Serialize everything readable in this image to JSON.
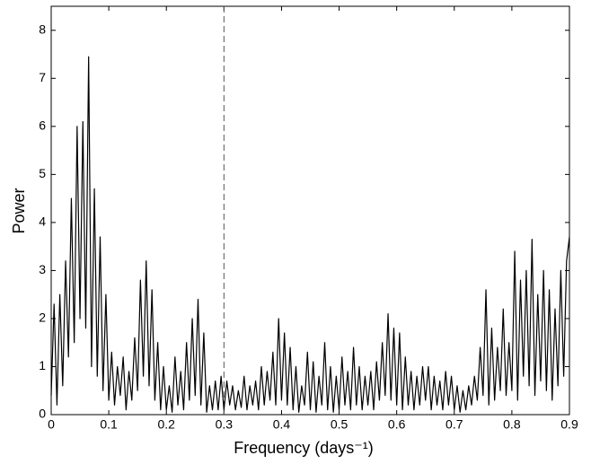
{
  "chart_data": {
    "type": "line",
    "xlabel": "Frequency (days⁻¹)",
    "ylabel": "Power",
    "xlim": [
      0,
      0.9
    ],
    "ylim": [
      0,
      8.5
    ],
    "xticks": [
      0,
      0.1,
      0.2,
      0.3,
      0.4,
      0.5,
      0.6,
      0.7,
      0.8,
      0.9
    ],
    "yticks": [
      0,
      1,
      2,
      3,
      4,
      5,
      6,
      7,
      8
    ],
    "vline": 0.3,
    "color": "#000000",
    "x": [
      0,
      0.005,
      0.01,
      0.015,
      0.02,
      0.025,
      0.03,
      0.035,
      0.04,
      0.045,
      0.05,
      0.055,
      0.06,
      0.065,
      0.07,
      0.075,
      0.08,
      0.085,
      0.09,
      0.095,
      0.1,
      0.105,
      0.11,
      0.115,
      0.12,
      0.125,
      0.13,
      0.135,
      0.14,
      0.145,
      0.15,
      0.155,
      0.16,
      0.165,
      0.17,
      0.175,
      0.18,
      0.185,
      0.19,
      0.195,
      0.2,
      0.205,
      0.21,
      0.215,
      0.22,
      0.225,
      0.23,
      0.235,
      0.24,
      0.245,
      0.25,
      0.255,
      0.26,
      0.265,
      0.27,
      0.275,
      0.28,
      0.285,
      0.29,
      0.295,
      0.3,
      0.305,
      0.31,
      0.315,
      0.32,
      0.325,
      0.33,
      0.335,
      0.34,
      0.345,
      0.35,
      0.355,
      0.36,
      0.365,
      0.37,
      0.375,
      0.38,
      0.385,
      0.39,
      0.395,
      0.4,
      0.405,
      0.41,
      0.415,
      0.42,
      0.425,
      0.43,
      0.435,
      0.44,
      0.445,
      0.45,
      0.455,
      0.46,
      0.465,
      0.47,
      0.475,
      0.48,
      0.485,
      0.49,
      0.495,
      0.5,
      0.505,
      0.51,
      0.515,
      0.52,
      0.525,
      0.53,
      0.535,
      0.54,
      0.545,
      0.55,
      0.555,
      0.56,
      0.565,
      0.57,
      0.575,
      0.58,
      0.585,
      0.59,
      0.595,
      0.6,
      0.605,
      0.61,
      0.615,
      0.62,
      0.625,
      0.63,
      0.635,
      0.64,
      0.645,
      0.65,
      0.655,
      0.66,
      0.665,
      0.67,
      0.675,
      0.68,
      0.685,
      0.69,
      0.695,
      0.7,
      0.705,
      0.71,
      0.715,
      0.72,
      0.725,
      0.73,
      0.735,
      0.74,
      0.745,
      0.75,
      0.755,
      0.76,
      0.765,
      0.77,
      0.775,
      0.78,
      0.785,
      0.79,
      0.795,
      0.8,
      0.805,
      0.81,
      0.815,
      0.82,
      0.825,
      0.83,
      0.835,
      0.84,
      0.845,
      0.85,
      0.855,
      0.86,
      0.865,
      0.87,
      0.875,
      0.88,
      0.885,
      0.89,
      0.895,
      0.9
    ],
    "values": [
      0.4,
      2.3,
      0.2,
      2.5,
      0.6,
      3.2,
      1.2,
      4.5,
      1.5,
      6.0,
      2.0,
      6.1,
      1.8,
      7.45,
      1.0,
      4.7,
      0.8,
      3.7,
      0.5,
      2.5,
      0.3,
      1.3,
      0.2,
      1.0,
      0.4,
      1.2,
      0.1,
      0.9,
      0.3,
      1.6,
      0.5,
      2.8,
      0.8,
      3.2,
      0.6,
      2.6,
      0.3,
      1.5,
      0.1,
      1.0,
      0.1,
      0.6,
      0.05,
      1.2,
      0.2,
      0.9,
      0.1,
      1.5,
      0.3,
      2.0,
      0.4,
      2.4,
      0.2,
      1.7,
      0.05,
      0.6,
      0.1,
      0.7,
      0.1,
      0.8,
      0.1,
      0.7,
      0.2,
      0.6,
      0.1,
      0.5,
      0.15,
      0.8,
      0.1,
      0.6,
      0.2,
      0.7,
      0.1,
      1.0,
      0.2,
      0.9,
      0.3,
      1.3,
      0.2,
      2.0,
      0.3,
      1.7,
      0.2,
      1.4,
      0.1,
      1.0,
      0.05,
      0.6,
      0.2,
      1.3,
      0.1,
      1.1,
      0.05,
      0.8,
      0.2,
      1.5,
      0.1,
      1.0,
      0.05,
      0.8,
      0.1,
      1.2,
      0.2,
      0.9,
      0.1,
      1.4,
      0.2,
      1.0,
      0.1,
      0.8,
      0.2,
      0.9,
      0.1,
      1.1,
      0.3,
      1.5,
      0.4,
      2.1,
      0.3,
      1.8,
      0.2,
      1.7,
      0.1,
      1.2,
      0.2,
      0.9,
      0.1,
      0.8,
      0.2,
      1.0,
      0.3,
      1.0,
      0.1,
      0.8,
      0.2,
      0.7,
      0.1,
      0.9,
      0.2,
      0.8,
      0.1,
      0.6,
      0.05,
      0.5,
      0.1,
      0.6,
      0.2,
      0.8,
      0.3,
      1.4,
      0.4,
      2.6,
      0.2,
      1.8,
      0.3,
      1.4,
      0.5,
      2.2,
      0.4,
      1.5,
      0.5,
      3.4,
      0.3,
      2.8,
      0.8,
      3.0,
      0.6,
      3.65,
      0.4,
      2.5,
      0.7,
      3.0,
      0.5,
      2.6,
      0.3,
      2.2,
      0.6,
      3.0,
      0.8,
      3.2,
      3.7
    ]
  }
}
